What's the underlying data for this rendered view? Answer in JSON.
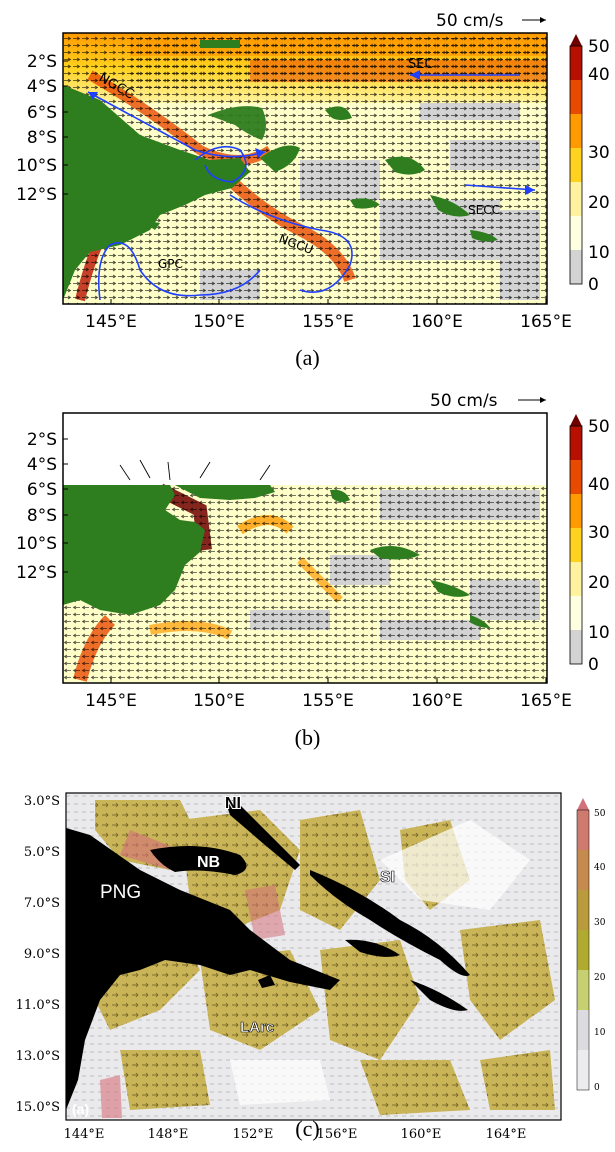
{
  "panel_a": {
    "scale_label": "50 cm/s",
    "y_ticks": [
      "2°S",
      "4°S",
      "6°S",
      "8°S",
      "10°S",
      "12°S"
    ],
    "x_ticks": [
      "145°E",
      "150°E",
      "155°E",
      "160°E",
      "165°E"
    ],
    "colorbar_ticks": [
      "50",
      "40",
      "30",
      "20",
      "10",
      "0"
    ],
    "labels": {
      "sec": "SEC",
      "ngcc": "NGCC",
      "secc": "SECC",
      "ngcu": "NGCU",
      "gpc": "GPC"
    },
    "caption": "(a)"
  },
  "panel_b": {
    "scale_label": "50 cm/s",
    "y_ticks": [
      "2°S",
      "4°S",
      "6°S",
      "8°S",
      "10°S",
      "12°S"
    ],
    "x_ticks": [
      "145°E",
      "150°E",
      "155°E",
      "160°E",
      "165°E"
    ],
    "colorbar_ticks": [
      "50",
      "40",
      "30",
      "20",
      "10",
      "0"
    ],
    "caption": "(b)"
  },
  "panel_c": {
    "y_ticks": [
      "3.0°S",
      "5.0°S",
      "7.0°S",
      "9.0°S",
      "11.0°S",
      "13.0°S",
      "15.0°S"
    ],
    "x_ticks": [
      "144°E",
      "148°E",
      "152°E",
      "156°E",
      "160°E",
      "164°E"
    ],
    "colorbar_ticks": [
      "50",
      "40",
      "30",
      "20",
      "10",
      "0"
    ],
    "labels": {
      "ni": "NI",
      "nb": "NB",
      "png": "PNG",
      "si": "SI",
      "larc": "LArc",
      "inset": "(a)"
    },
    "caption": "(c)"
  },
  "colors": {
    "land_a": "#2e7d1f",
    "land_c": "#000000",
    "ocean_low": "#d3d3d3",
    "speed_scale": [
      "#fefee0",
      "#fff3a0",
      "#ffd21f",
      "#ff9a00",
      "#e84a00",
      "#b81000",
      "#6e0000"
    ],
    "current_line": "#2040ff"
  }
}
